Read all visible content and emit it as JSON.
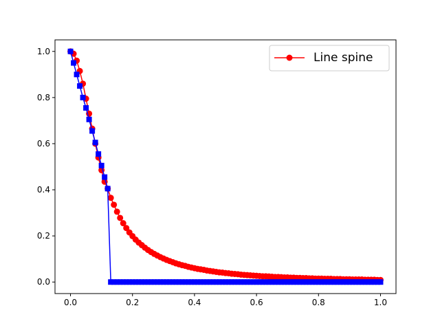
{
  "chart_data": {
    "type": "line",
    "title": "",
    "xlabel": "",
    "ylabel": "",
    "xlim": [
      -0.05,
      1.05
    ],
    "ylim": [
      -0.05,
      1.05
    ],
    "xticks": [
      0.0,
      0.2,
      0.4,
      0.6,
      0.8,
      1.0
    ],
    "yticks": [
      0.0,
      0.2,
      0.4,
      0.6,
      0.8,
      1.0
    ],
    "xtick_labels": [
      "0.0",
      "0.2",
      "0.4",
      "0.6",
      "0.8",
      "1.0"
    ],
    "ytick_labels": [
      "0.0",
      "0.2",
      "0.4",
      "0.6",
      "0.8",
      "1.0"
    ],
    "grid": false,
    "legend_position": "top-right",
    "series": [
      {
        "name": "Line spine",
        "color": "#ff0000",
        "marker": "circle",
        "in_legend": true,
        "x": [
          0,
          0.01,
          0.02,
          0.03,
          0.04,
          0.05,
          0.06,
          0.07,
          0.08,
          0.09,
          0.1,
          0.11,
          0.12,
          0.13,
          0.14,
          0.15,
          0.16,
          0.17,
          0.18,
          0.19,
          0.2,
          0.21,
          0.22,
          0.23,
          0.24,
          0.25,
          0.26,
          0.27,
          0.28,
          0.29,
          0.3,
          0.31,
          0.32,
          0.33,
          0.34,
          0.35,
          0.36,
          0.37,
          0.38,
          0.39,
          0.4,
          0.41,
          0.42,
          0.43,
          0.44,
          0.45,
          0.46,
          0.47,
          0.48,
          0.49,
          0.5,
          0.51,
          0.52,
          0.53,
          0.54,
          0.55,
          0.56,
          0.57,
          0.58,
          0.59,
          0.6,
          0.61,
          0.62,
          0.63,
          0.64,
          0.65,
          0.66,
          0.67,
          0.68,
          0.69,
          0.7,
          0.71,
          0.72,
          0.73,
          0.74,
          0.75,
          0.76,
          0.77,
          0.78,
          0.79,
          0.8,
          0.81,
          0.82,
          0.83,
          0.84,
          0.85,
          0.86,
          0.87,
          0.88,
          0.89,
          0.9,
          0.91,
          0.92,
          0.93,
          0.94,
          0.95,
          0.96,
          0.97,
          0.98,
          0.99,
          1.0
        ],
        "y": [
          1.0,
          0.99,
          0.96,
          0.915,
          0.86,
          0.795,
          0.73,
          0.665,
          0.6,
          0.54,
          0.485,
          0.435,
          0.405,
          0.365,
          0.335,
          0.305,
          0.278,
          0.255,
          0.234,
          0.215,
          0.199,
          0.184,
          0.171,
          0.16,
          0.149,
          0.139,
          0.13,
          0.122,
          0.115,
          0.108,
          0.102,
          0.096,
          0.091,
          0.086,
          0.081,
          0.077,
          0.073,
          0.07,
          0.066,
          0.063,
          0.06,
          0.057,
          0.055,
          0.053,
          0.05,
          0.048,
          0.046,
          0.044,
          0.042,
          0.041,
          0.039,
          0.038,
          0.036,
          0.035,
          0.034,
          0.032,
          0.031,
          0.03,
          0.029,
          0.028,
          0.027,
          0.026,
          0.025,
          0.025,
          0.024,
          0.023,
          0.022,
          0.022,
          0.021,
          0.02,
          0.02,
          0.019,
          0.019,
          0.018,
          0.018,
          0.017,
          0.017,
          0.016,
          0.016,
          0.015,
          0.015,
          0.015,
          0.014,
          0.014,
          0.014,
          0.013,
          0.013,
          0.013,
          0.012,
          0.012,
          0.012,
          0.011,
          0.011,
          0.011,
          0.011,
          0.01,
          0.01,
          0.01,
          0.01,
          0.009,
          0.009
        ]
      },
      {
        "name": "",
        "color": "#0000ff",
        "marker": "square",
        "in_legend": false,
        "x": [
          0,
          0.01,
          0.02,
          0.03,
          0.04,
          0.05,
          0.06,
          0.07,
          0.08,
          0.09,
          0.1,
          0.11,
          0.12,
          0.13,
          0.14,
          0.15,
          0.16,
          0.17,
          0.18,
          0.19,
          0.2,
          0.21,
          0.22,
          0.23,
          0.24,
          0.25,
          0.26,
          0.27,
          0.28,
          0.29,
          0.3,
          0.31,
          0.32,
          0.33,
          0.34,
          0.35,
          0.36,
          0.37,
          0.38,
          0.39,
          0.4,
          0.41,
          0.42,
          0.43,
          0.44,
          0.45,
          0.46,
          0.47,
          0.48,
          0.49,
          0.5,
          0.51,
          0.52,
          0.53,
          0.54,
          0.55,
          0.56,
          0.57,
          0.58,
          0.59,
          0.6,
          0.61,
          0.62,
          0.63,
          0.64,
          0.65,
          0.66,
          0.67,
          0.68,
          0.69,
          0.7,
          0.71,
          0.72,
          0.73,
          0.74,
          0.75,
          0.76,
          0.77,
          0.78,
          0.79,
          0.8,
          0.81,
          0.82,
          0.83,
          0.84,
          0.85,
          0.86,
          0.87,
          0.88,
          0.89,
          0.9,
          0.91,
          0.92,
          0.93,
          0.94,
          0.95,
          0.96,
          0.97,
          0.98,
          0.99,
          1.0
        ],
        "y": [
          1.0,
          0.95,
          0.9,
          0.85,
          0.8,
          0.755,
          0.705,
          0.655,
          0.605,
          0.555,
          0.505,
          0.455,
          0.405,
          0,
          0,
          0,
          0,
          0,
          0,
          0,
          0,
          0,
          0,
          0,
          0,
          0,
          0,
          0,
          0,
          0,
          0,
          0,
          0,
          0,
          0,
          0,
          0,
          0,
          0,
          0,
          0,
          0,
          0,
          0,
          0,
          0,
          0,
          0,
          0,
          0,
          0,
          0,
          0,
          0,
          0,
          0,
          0,
          0,
          0,
          0,
          0,
          0,
          0,
          0,
          0,
          0,
          0,
          0,
          0,
          0,
          0,
          0,
          0,
          0,
          0,
          0,
          0,
          0,
          0,
          0,
          0,
          0,
          0,
          0,
          0,
          0,
          0,
          0,
          0,
          0,
          0,
          0,
          0,
          0,
          0,
          0,
          0,
          0,
          0,
          0,
          0
        ]
      }
    ]
  }
}
